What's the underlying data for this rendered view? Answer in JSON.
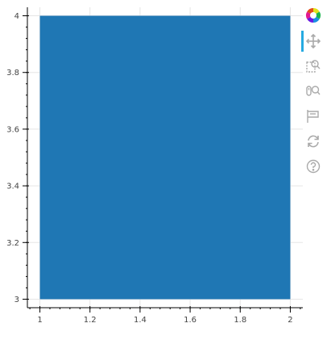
{
  "chart_data": {
    "type": "bar",
    "rects": [
      {
        "x0": 1,
        "x1": 2,
        "y0": 3,
        "y1": 4
      }
    ],
    "xlim": [
      0.95,
      2.05
    ],
    "ylim": [
      2.97,
      4.03
    ],
    "x_ticks": [
      1,
      1.2,
      1.4,
      1.6,
      1.8,
      2
    ],
    "x_tick_labels": [
      "1",
      "1.2",
      "1.4",
      "1.6",
      "1.8",
      "2"
    ],
    "y_ticks": [
      3,
      3.2,
      3.4,
      3.6,
      3.8,
      4
    ],
    "y_tick_labels": [
      "3",
      "3.2",
      "3.4",
      "3.6",
      "3.8",
      "4"
    ],
    "grid": true,
    "title": "",
    "xlabel": "",
    "ylabel": ""
  },
  "colors": {
    "fill": "#1f77b4",
    "grid": "#e5e5e5",
    "axis": "#000000",
    "toolbar_icon": "#aaaaaa",
    "toolbar_active": "#26aae1"
  },
  "toolbar": {
    "tools": [
      {
        "icon": "bokeh-logo-icon",
        "active": false
      },
      {
        "icon": "pan-icon",
        "active": true
      },
      {
        "icon": "box-zoom-icon",
        "active": false
      },
      {
        "icon": "wheel-zoom-icon",
        "active": false
      },
      {
        "icon": "save-icon",
        "active": false
      },
      {
        "icon": "reset-icon",
        "active": false
      },
      {
        "icon": "help-icon",
        "active": false
      }
    ]
  }
}
